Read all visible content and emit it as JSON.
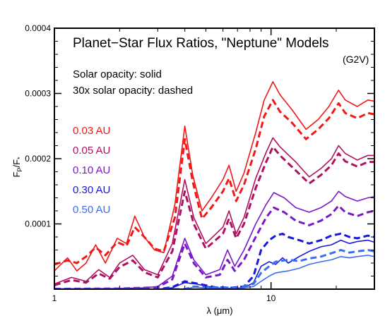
{
  "chart_data": {
    "type": "line",
    "title": "Planet−Star Flux Ratios, \"Neptune\" Models",
    "subtitle": "(G2V)",
    "legend_notes": [
      "Solar opacity: solid",
      "30x solar opacity: dashed"
    ],
    "xlabel": "λ (μm)",
    "ylabel": "F_P/F_*",
    "x_scale": "log",
    "xlim": [
      1,
      30
    ],
    "ylim": [
      0,
      0.0004
    ],
    "x_ticks": [
      1,
      10
    ],
    "x_tick_labels": [
      "1",
      "10"
    ],
    "y_ticks": [
      0.0001,
      0.0002,
      0.0003,
      0.0004
    ],
    "y_tick_labels": [
      "0.0001",
      "0.0002",
      "0.0003",
      "0.0004"
    ],
    "series": [
      {
        "name": "0.03 AU",
        "color": "#f01818",
        "solid": [
          [
            1.0,
            2.8e-05
          ],
          [
            1.15,
            4.8e-05
          ],
          [
            1.27,
            2.8e-05
          ],
          [
            1.4,
            4e-05
          ],
          [
            1.55,
            6.8e-05
          ],
          [
            1.72,
            4e-05
          ],
          [
            1.95,
            7.8e-05
          ],
          [
            2.15,
            7e-05
          ],
          [
            2.35,
            0.000112
          ],
          [
            2.6,
            8e-05
          ],
          [
            2.9,
            6e-05
          ],
          [
            3.2,
            5.6e-05
          ],
          [
            3.6,
            0.00013
          ],
          [
            4.0,
            0.00025
          ],
          [
            4.35,
            0.000175
          ],
          [
            4.8,
            0.00012
          ],
          [
            5.3,
            0.00014
          ],
          [
            6.0,
            0.000168
          ],
          [
            6.4,
            0.00019
          ],
          [
            6.9,
            0.00015
          ],
          [
            7.5,
            0.000178
          ],
          [
            8.5,
            0.00024
          ],
          [
            9.3,
            0.00029
          ],
          [
            10.2,
            0.000318
          ],
          [
            11.0,
            0.000298
          ],
          [
            12.5,
            0.000275
          ],
          [
            14.5,
            0.000245
          ],
          [
            16.5,
            0.00026
          ],
          [
            18.5,
            0.00028
          ],
          [
            20.5,
            0.000305
          ],
          [
            22.0,
            0.00029
          ],
          [
            25.0,
            0.00028
          ],
          [
            28.0,
            0.00029
          ],
          [
            30.0,
            0.000288
          ]
        ],
        "dashed": [
          [
            1.0,
            3.8e-05
          ],
          [
            1.15,
            4.4e-05
          ],
          [
            1.27,
            4e-05
          ],
          [
            1.4,
            5e-05
          ],
          [
            1.55,
            6.4e-05
          ],
          [
            1.72,
            5.2e-05
          ],
          [
            1.95,
            7.2e-05
          ],
          [
            2.15,
            6.6e-05
          ],
          [
            2.35,
            9.5e-05
          ],
          [
            2.6,
            8e-05
          ],
          [
            2.9,
            6.2e-05
          ],
          [
            3.2,
            5.8e-05
          ],
          [
            3.6,
            0.00011
          ],
          [
            4.0,
            0.00023
          ],
          [
            4.35,
            0.000165
          ],
          [
            4.8,
            0.000108
          ],
          [
            5.3,
            0.000125
          ],
          [
            6.0,
            0.00015
          ],
          [
            6.4,
            0.00017
          ],
          [
            6.9,
            0.000135
          ],
          [
            7.5,
            0.00016
          ],
          [
            8.5,
            0.000215
          ],
          [
            9.3,
            0.000265
          ],
          [
            10.2,
            0.00029
          ],
          [
            11.0,
            0.000272
          ],
          [
            12.5,
            0.000255
          ],
          [
            14.5,
            0.00023
          ],
          [
            16.5,
            0.000245
          ],
          [
            18.5,
            0.000262
          ],
          [
            20.5,
            0.000285
          ],
          [
            22.0,
            0.00027
          ],
          [
            25.0,
            0.000262
          ],
          [
            28.0,
            0.00027
          ],
          [
            30.0,
            0.000268
          ]
        ]
      },
      {
        "name": "0.05 AU",
        "color": "#b01060",
        "solid": [
          [
            1.0,
            8e-06
          ],
          [
            1.2,
            1.8e-05
          ],
          [
            1.4,
            1.2e-05
          ],
          [
            1.6,
            3e-05
          ],
          [
            1.8,
            1.8e-05
          ],
          [
            2.0,
            4e-05
          ],
          [
            2.3,
            5.2e-05
          ],
          [
            2.6,
            3e-05
          ],
          [
            3.0,
            2.2e-05
          ],
          [
            3.5,
            7e-05
          ],
          [
            4.0,
            0.000168
          ],
          [
            4.4,
            0.00011
          ],
          [
            5.0,
            7e-05
          ],
          [
            6.0,
            9.5e-05
          ],
          [
            6.4,
            0.00012
          ],
          [
            6.9,
            8.5e-05
          ],
          [
            7.5,
            0.00011
          ],
          [
            8.5,
            0.00017
          ],
          [
            9.5,
            0.00021
          ],
          [
            10.2,
            0.000232
          ],
          [
            11.0,
            0.000218
          ],
          [
            13.0,
            0.000195
          ],
          [
            15.0,
            0.000172
          ],
          [
            17.0,
            0.000185
          ],
          [
            19.0,
            0.0002
          ],
          [
            20.5,
            0.00022
          ],
          [
            22.0,
            0.000208
          ],
          [
            25.0,
            0.000198
          ],
          [
            28.0,
            0.000205
          ],
          [
            30.0,
            0.000205
          ]
        ],
        "dashed": [
          [
            1.0,
            6e-06
          ],
          [
            1.2,
            1.4e-05
          ],
          [
            1.4,
            1e-05
          ],
          [
            1.6,
            2.4e-05
          ],
          [
            1.8,
            1.6e-05
          ],
          [
            2.0,
            3.4e-05
          ],
          [
            2.3,
            4.4e-05
          ],
          [
            2.6,
            2.6e-05
          ],
          [
            3.0,
            1.8e-05
          ],
          [
            3.5,
            5.8e-05
          ],
          [
            4.0,
            0.00015
          ],
          [
            4.4,
            0.0001
          ],
          [
            5.0,
            6.2e-05
          ],
          [
            6.0,
            8.5e-05
          ],
          [
            6.4,
            0.000108
          ],
          [
            6.9,
            7.8e-05
          ],
          [
            7.5,
            0.0001
          ],
          [
            8.5,
            0.000155
          ],
          [
            9.5,
            0.000195
          ],
          [
            10.2,
            0.000218
          ],
          [
            11.0,
            0.000205
          ],
          [
            13.0,
            0.000182
          ],
          [
            15.0,
            0.000162
          ],
          [
            17.0,
            0.000175
          ],
          [
            19.0,
            0.00019
          ],
          [
            20.5,
            0.000208
          ],
          [
            22.0,
            0.000196
          ],
          [
            25.0,
            0.000188
          ],
          [
            28.0,
            0.000195
          ],
          [
            30.0,
            0.000195
          ]
        ]
      },
      {
        "name": "0.10 AU",
        "color": "#7a18c8",
        "solid": [
          [
            1.0,
            5e-07
          ],
          [
            2.0,
            1e-06
          ],
          [
            2.6,
            2e-06
          ],
          [
            3.0,
            4e-06
          ],
          [
            3.5,
            2e-05
          ],
          [
            4.0,
            7.8e-05
          ],
          [
            4.4,
            4.5e-05
          ],
          [
            5.0,
            2.2e-05
          ],
          [
            5.8,
            3e-05
          ],
          [
            6.3,
            6e-05
          ],
          [
            6.8,
            3.5e-05
          ],
          [
            7.5,
            6e-05
          ],
          [
            8.5,
            0.0001
          ],
          [
            9.5,
            0.00013
          ],
          [
            10.3,
            0.000148
          ],
          [
            11.5,
            0.00014
          ],
          [
            13.0,
            0.000125
          ],
          [
            15.0,
            0.000118
          ],
          [
            17.0,
            0.000125
          ],
          [
            19.0,
            0.000135
          ],
          [
            20.5,
            0.00015
          ],
          [
            22.0,
            0.000142
          ],
          [
            25.0,
            0.000135
          ],
          [
            28.0,
            0.00014
          ],
          [
            30.0,
            0.000142
          ]
        ],
        "dashed": [
          [
            1.0,
            5e-07
          ],
          [
            2.0,
            1e-06
          ],
          [
            2.6,
            2e-06
          ],
          [
            3.0,
            3e-06
          ],
          [
            3.5,
            1.5e-05
          ],
          [
            4.0,
            7e-05
          ],
          [
            4.4,
            4e-05
          ],
          [
            5.0,
            1.8e-05
          ],
          [
            5.8,
            2.2e-05
          ],
          [
            6.3,
            4.5e-05
          ],
          [
            6.8,
            2.8e-05
          ],
          [
            7.5,
            4.5e-05
          ],
          [
            8.5,
            8e-05
          ],
          [
            9.5,
            0.00011
          ],
          [
            10.3,
            0.000125
          ],
          [
            11.5,
            0.000118
          ],
          [
            13.0,
            0.000105
          ],
          [
            15.0,
            9.8e-05
          ],
          [
            17.0,
            0.000105
          ],
          [
            19.0,
            0.000115
          ],
          [
            20.5,
            0.000128
          ],
          [
            22.0,
            0.000118
          ],
          [
            25.0,
            0.000112
          ],
          [
            28.0,
            0.000118
          ],
          [
            30.0,
            0.00012
          ]
        ]
      },
      {
        "name": "0.30 AU",
        "color": "#1818d8",
        "solid": [
          [
            1.0,
            0.0
          ],
          [
            3.0,
            0.0
          ],
          [
            3.5,
            2e-06
          ],
          [
            4.0,
            1e-05
          ],
          [
            4.5,
            8e-06
          ],
          [
            5.5,
            2e-06
          ],
          [
            6.5,
            1e-06
          ],
          [
            7.5,
            2e-06
          ],
          [
            8.3,
            1e-05
          ],
          [
            9.0,
            3.5e-05
          ],
          [
            9.8,
            4.2e-05
          ],
          [
            10.5,
            3.8e-05
          ],
          [
            11.3,
            4.8e-05
          ],
          [
            12.0,
            4e-05
          ],
          [
            13.5,
            5e-05
          ],
          [
            15.0,
            5.8e-05
          ],
          [
            17.0,
            6.5e-05
          ],
          [
            19.0,
            6.8e-05
          ],
          [
            21.0,
            7.5e-05
          ],
          [
            23.0,
            7e-05
          ],
          [
            25.0,
            7.3e-05
          ],
          [
            28.0,
            7.5e-05
          ],
          [
            30.0,
            7.2e-05
          ]
        ],
        "dashed": [
          [
            1.0,
            0.0
          ],
          [
            3.0,
            0.0
          ],
          [
            3.5,
            3e-06
          ],
          [
            4.0,
            1.2e-05
          ],
          [
            4.5,
            9e-06
          ],
          [
            5.5,
            3e-06
          ],
          [
            6.5,
            2e-06
          ],
          [
            7.5,
            4e-06
          ],
          [
            8.3,
            2e-05
          ],
          [
            9.0,
            6e-05
          ],
          [
            9.8,
            7.5e-05
          ],
          [
            10.5,
            8.2e-05
          ],
          [
            11.3,
            8.5e-05
          ],
          [
            12.0,
            8e-05
          ],
          [
            13.5,
            7.5e-05
          ],
          [
            15.0,
            7e-05
          ],
          [
            17.0,
            7.5e-05
          ],
          [
            19.0,
            8.2e-05
          ],
          [
            21.0,
            8.5e-05
          ],
          [
            23.0,
            8e-05
          ],
          [
            25.0,
            7.8e-05
          ],
          [
            28.0,
            8.2e-05
          ],
          [
            30.0,
            8e-05
          ]
        ]
      },
      {
        "name": "0.50 AU",
        "color": "#3c6cf0",
        "solid": [
          [
            1.0,
            0.0
          ],
          [
            4.0,
            0.0
          ],
          [
            4.4,
            3e-06
          ],
          [
            5.0,
            2e-06
          ],
          [
            7.0,
            1e-06
          ],
          [
            8.3,
            4e-06
          ],
          [
            9.0,
            1.2e-05
          ],
          [
            9.8,
            2e-05
          ],
          [
            10.5,
            2.5e-05
          ],
          [
            12.0,
            2.8e-05
          ],
          [
            13.5,
            3.2e-05
          ],
          [
            15.0,
            3.8e-05
          ],
          [
            17.0,
            4.2e-05
          ],
          [
            19.0,
            4.5e-05
          ],
          [
            21.0,
            5e-05
          ],
          [
            23.0,
            4.8e-05
          ],
          [
            25.0,
            5e-05
          ],
          [
            28.0,
            5.2e-05
          ],
          [
            30.0,
            5e-05
          ]
        ],
        "dashed": [
          [
            1.0,
            0.0
          ],
          [
            4.0,
            0.0
          ],
          [
            4.4,
            4e-06
          ],
          [
            5.0,
            3e-06
          ],
          [
            7.0,
            2e-06
          ],
          [
            8.3,
            8e-06
          ],
          [
            9.0,
            2.5e-05
          ],
          [
            9.8,
            3.5e-05
          ],
          [
            10.5,
            4.2e-05
          ],
          [
            12.0,
            4.5e-05
          ],
          [
            13.5,
            4.3e-05
          ],
          [
            15.0,
            4.7e-05
          ],
          [
            17.0,
            5e-05
          ],
          [
            19.0,
            5.5e-05
          ],
          [
            21.0,
            6e-05
          ],
          [
            23.0,
            5.6e-05
          ],
          [
            25.0,
            5.8e-05
          ],
          [
            28.0,
            6e-05
          ],
          [
            30.0,
            5.8e-05
          ]
        ]
      }
    ]
  }
}
